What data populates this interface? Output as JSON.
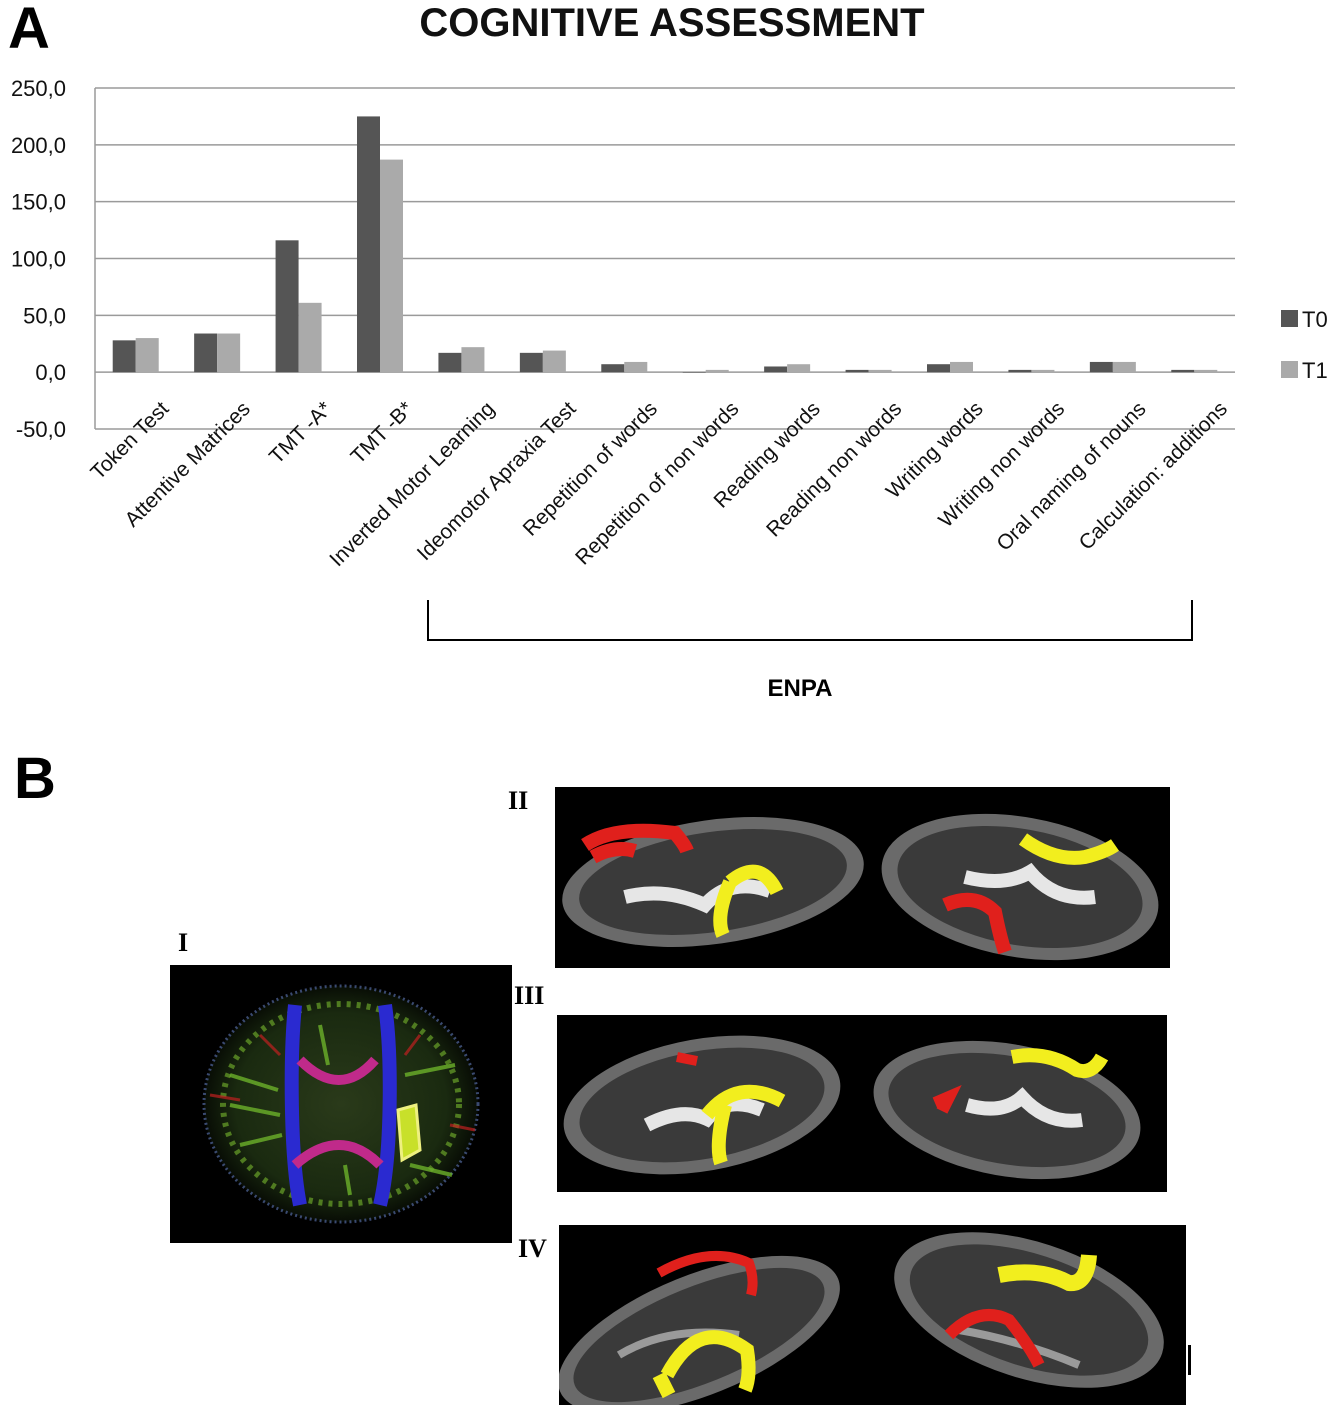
{
  "panel_a": {
    "letter": "A"
  },
  "panel_b": {
    "letter": "B",
    "images": [
      {
        "label": "I",
        "description_icon": "dti-color-fa-brain-icon"
      },
      {
        "label": "II",
        "description_icon": "tractography-brain-icon"
      },
      {
        "label": "III",
        "description_icon": "tractography-brain-icon"
      },
      {
        "label": "IV",
        "description_icon": "tractography-brain-icon"
      }
    ]
  },
  "colors": {
    "t0": "#555555",
    "t1": "#aaaaaa",
    "tract_red": "#e0201c",
    "tract_yellow": "#f2ee1e"
  },
  "chart_data": {
    "type": "bar",
    "title": "COGNITIVE ASSESSMENT",
    "xlabel": "",
    "ylabel": "",
    "ylim": [
      -50,
      250
    ],
    "yticks": [
      "-50,0",
      "0,0",
      "50,0",
      "100,0",
      "150,0",
      "200,0",
      "250,0"
    ],
    "grid": true,
    "legend": "right",
    "categories": [
      "Token Test",
      "Attentive Matrices",
      "TMT -A*",
      "TMT -B*",
      "Inverted Motor Learning",
      "Ideomotor Apraxia Test",
      "Repetition of words",
      "Repetition of non words",
      "Reading words",
      "Reading non words",
      "Writing words",
      "Writing non words",
      "Oral naming of nouns",
      "Calculation: additions"
    ],
    "series": [
      {
        "name": "T0",
        "values": [
          28,
          34,
          116,
          225,
          17,
          17,
          7,
          0,
          5,
          2,
          7,
          2,
          9,
          2
        ]
      },
      {
        "name": "T1",
        "values": [
          30,
          34,
          61,
          187,
          22,
          19,
          9,
          2,
          7,
          2,
          9,
          2,
          9,
          2
        ]
      }
    ],
    "group_annotation": "ENPA"
  }
}
